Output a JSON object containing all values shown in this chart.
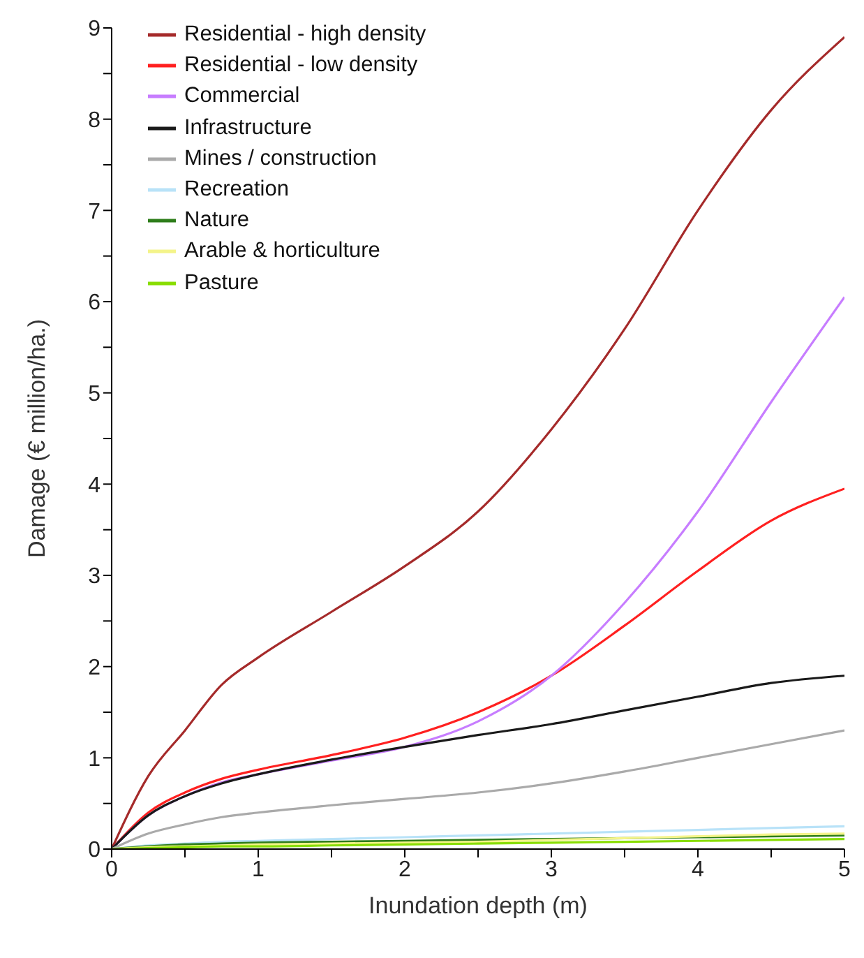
{
  "chart_data": {
    "type": "line",
    "xlabel": "Inundation depth (m)",
    "ylabel": "Damage (€ million/ha.)",
    "x": [
      0,
      0.25,
      0.5,
      0.75,
      1,
      1.5,
      2,
      2.5,
      3,
      3.5,
      4,
      4.5,
      5
    ],
    "series": [
      {
        "name": "Residential - high density",
        "color": "#a52a2a",
        "values": [
          0,
          0.8,
          1.3,
          1.8,
          2.1,
          2.6,
          3.1,
          3.7,
          4.6,
          5.7,
          7.0,
          8.1,
          8.9
        ]
      },
      {
        "name": "Residential - low density",
        "color": "#ff2020",
        "values": [
          0,
          0.4,
          0.62,
          0.77,
          0.87,
          1.03,
          1.22,
          1.5,
          1.9,
          2.45,
          3.05,
          3.6,
          3.95
        ]
      },
      {
        "name": "Commercial",
        "color": "#c77dff",
        "values": [
          0,
          0.37,
          0.58,
          0.73,
          0.82,
          0.97,
          1.12,
          1.4,
          1.9,
          2.7,
          3.7,
          4.9,
          6.05
        ]
      },
      {
        "name": "Infrastructure",
        "color": "#1a1a1a",
        "values": [
          0,
          0.37,
          0.58,
          0.72,
          0.82,
          0.98,
          1.12,
          1.25,
          1.37,
          1.52,
          1.67,
          1.82,
          1.9
        ]
      },
      {
        "name": "Mines / construction",
        "color": "#aaaaaa",
        "values": [
          0,
          0.17,
          0.27,
          0.35,
          0.4,
          0.48,
          0.55,
          0.62,
          0.72,
          0.85,
          1.0,
          1.15,
          1.3
        ]
      },
      {
        "name": "Recreation",
        "color": "#b8e2f8",
        "values": [
          0,
          0.04,
          0.06,
          0.08,
          0.09,
          0.11,
          0.13,
          0.15,
          0.17,
          0.19,
          0.21,
          0.23,
          0.25
        ]
      },
      {
        "name": "Nature",
        "color": "#2e7d1a",
        "values": [
          0,
          0.03,
          0.05,
          0.06,
          0.07,
          0.08,
          0.09,
          0.1,
          0.11,
          0.12,
          0.13,
          0.14,
          0.15
        ]
      },
      {
        "name": "Arable & horticulture",
        "color": "#f4f48a",
        "values": [
          0,
          0.02,
          0.03,
          0.04,
          0.05,
          0.06,
          0.07,
          0.08,
          0.1,
          0.12,
          0.14,
          0.16,
          0.17
        ]
      },
      {
        "name": "Pasture",
        "color": "#88dd00",
        "values": [
          0,
          0.01,
          0.02,
          0.03,
          0.03,
          0.04,
          0.05,
          0.06,
          0.07,
          0.08,
          0.09,
          0.1,
          0.11
        ]
      }
    ],
    "xlim": [
      0,
      5
    ],
    "xticks": [
      0,
      {
        "value": 0.5,
        "label": null
      },
      1,
      {
        "value": 1.5,
        "label": null
      },
      2,
      {
        "value": 2.5,
        "label": null
      },
      3,
      {
        "value": 3.5,
        "label": null
      },
      4,
      {
        "value": 4.5,
        "label": null
      },
      5
    ],
    "ylim": [
      0,
      9
    ],
    "yticks": [
      0,
      {
        "value": 0.5,
        "label": null
      },
      1,
      {
        "value": 1.5,
        "label": null
      },
      2,
      {
        "value": 2.5,
        "label": null
      },
      3,
      {
        "value": 3.5,
        "label": null
      },
      4,
      {
        "value": 4.5,
        "label": null
      },
      5,
      {
        "value": 5.5,
        "label": null
      },
      6,
      {
        "value": 6.5,
        "label": null
      },
      7,
      {
        "value": 7.5,
        "label": null
      },
      8,
      {
        "value": 8.5,
        "label": null
      },
      9
    ],
    "grid": false,
    "legend": "top left",
    "marker": "none",
    "line_style": "solid"
  }
}
